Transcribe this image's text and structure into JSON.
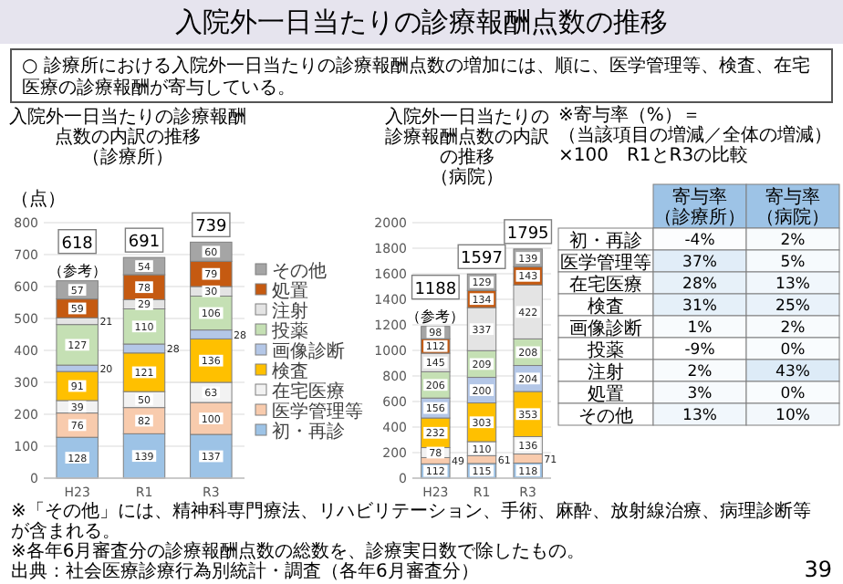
{
  "chart_data": [
    {
      "type": "other",
      "title": "入院外一日当たりの診療報酬点数の推移",
      "subtitle": "○ 診療所における入院外一日当たりの診療報酬点数の増加には、順に、医学管理等、検査、在宅医療の診療報酬が寄与している。",
      "annotations": [
        "※「その他」には、精神科専門療法、リハビリテーション、手術、麻酔、放射線治療、病理診断等が含まれる。",
        "※各年6月審査分の診療報酬点数の総数を、診療実日数で除したもの。",
        "出典：社会医療診療行為別統計・調査（各年6月審査分）",
        "39"
      ]
    },
    {
      "type": "bar",
      "stacked": true,
      "title": "入院外一日当たりの診療報酬点数の内訳の推移",
      "subtitle": "（診療所）",
      "ylabel": "（点）",
      "categories": [
        "H23",
        "R1",
        "R3"
      ],
      "ylim": [
        0,
        800
      ],
      "yticks": [
        0,
        100,
        200,
        300,
        400,
        500,
        600,
        700,
        800
      ],
      "grid": "y",
      "legend": "right",
      "data_labels": true,
      "totals": [
        "618",
        "691",
        "739"
      ],
      "annotations": [
        {
          "text": "（参考）",
          "x": "H23",
          "y": 618
        }
      ],
      "series": [
        {
          "name": "初・再診",
          "color": "#9dc3e6",
          "values": [
            128,
            139,
            137
          ]
        },
        {
          "name": "医学管理等",
          "color": "#f8cbad",
          "values": [
            76,
            82,
            100
          ]
        },
        {
          "name": "在宅医療",
          "color": "#f2f2f2",
          "values": [
            39,
            50,
            63
          ]
        },
        {
          "name": "検査",
          "color": "#ffc000",
          "values": [
            91,
            121,
            136
          ]
        },
        {
          "name": "画像診断",
          "color": "#b4c7e7",
          "values": [
            20,
            28,
            28
          ]
        },
        {
          "name": "投薬",
          "color": "#c5e0b4",
          "values": [
            127,
            110,
            106
          ]
        },
        {
          "name": "注射",
          "color": "#e4e4e4",
          "values": [
            21,
            29,
            30
          ]
        },
        {
          "name": "処置",
          "color": "#c55a11",
          "values": [
            59,
            78,
            79
          ]
        },
        {
          "name": "その他",
          "color": "#a5a5a5",
          "values": [
            57,
            54,
            60
          ]
        }
      ]
    },
    {
      "type": "bar",
      "stacked": true,
      "title": "入院外一日当たりの診療報酬点数の内訳の推移",
      "subtitle": "（病院）",
      "categories": [
        "H23",
        "R1",
        "R3"
      ],
      "ylim": [
        0,
        2000
      ],
      "yticks": [
        0,
        200,
        400,
        600,
        800,
        1000,
        1200,
        1400,
        1600,
        1800,
        2000
      ],
      "grid": "y",
      "data_labels": true,
      "totals": [
        "1188",
        "1597",
        "1795"
      ],
      "annotations": [
        {
          "text": "（参考）",
          "x": "H23",
          "y": 1188
        }
      ],
      "series": [
        {
          "color": "#9dc3e6",
          "values": [
            112,
            115,
            118
          ]
        },
        {
          "color": "#f8cbad",
          "values": [
            49,
            61,
            71
          ]
        },
        {
          "color": "#f2f2f2",
          "values": [
            78,
            110,
            136
          ]
        },
        {
          "color": "#ffc000",
          "values": [
            232,
            303,
            353
          ]
        },
        {
          "color": "#b4c7e7",
          "values": [
            156,
            200,
            204
          ]
        },
        {
          "color": "#c5e0b4",
          "values": [
            206,
            209,
            208
          ]
        },
        {
          "color": "#e4e4e4",
          "values": [
            145,
            337,
            422
          ]
        },
        {
          "color": "#c55a11",
          "values": [
            112,
            134,
            143
          ]
        },
        {
          "color": "#a5a5a5",
          "values": [
            98,
            129,
            139
          ]
        }
      ]
    },
    {
      "type": "heatmap",
      "title": "※寄与率（%）＝（当該項目の増減／全体の増減）×100　R1とR3の比較",
      "categories": [
        "寄与率（診療所）",
        "寄与率（病院）"
      ],
      "y_categories": [
        "初・再診",
        "医学管理等",
        "在宅医療",
        "検査",
        "画像診断",
        "投薬",
        "注射",
        "処置",
        "その他"
      ],
      "cells": [
        [
          -4,
          2
        ],
        [
          37,
          5
        ],
        [
          28,
          13
        ],
        [
          31,
          25
        ],
        [
          1,
          2
        ],
        [
          -9,
          0
        ],
        [
          2,
          43
        ],
        [
          3,
          0
        ],
        [
          13,
          10
        ]
      ],
      "cell_labels": [
        [
          "-4%",
          "2%"
        ],
        [
          "37%",
          "5%"
        ],
        [
          "28%",
          "13%"
        ],
        [
          "31%",
          "25%"
        ],
        [
          "1%",
          "2%"
        ],
        [
          "-9%",
          "0%"
        ],
        [
          "2%",
          "43%"
        ],
        [
          "3%",
          "0%"
        ],
        [
          "13%",
          "10%"
        ]
      ]
    }
  ]
}
